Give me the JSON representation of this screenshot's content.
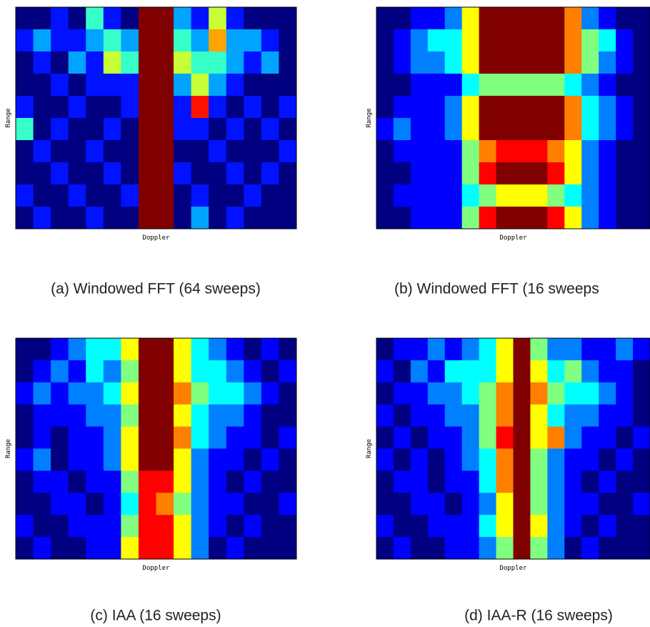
{
  "chart_data": [
    {
      "type": "heatmap",
      "colormap": "jet",
      "xlabel": "Doppler",
      "ylabel": "Range",
      "caption": "(a) Windowed FFT (64 sweeps)",
      "z": [
        [
          2,
          2,
          3,
          2,
          5,
          3,
          2,
          9,
          9,
          4,
          3,
          6,
          3,
          2,
          2,
          2
        ],
        [
          3,
          4,
          3,
          3,
          4,
          5,
          4,
          9,
          9,
          5,
          4,
          7,
          4,
          4,
          3,
          2
        ],
        [
          2,
          3,
          2,
          4,
          3,
          6,
          5,
          9,
          9,
          6,
          5,
          5,
          4,
          3,
          4,
          2
        ],
        [
          2,
          2,
          3,
          2,
          3,
          3,
          3,
          9,
          9,
          4,
          6,
          4,
          3,
          2,
          2,
          2
        ],
        [
          3,
          2,
          2,
          3,
          2,
          2,
          3,
          9,
          9,
          3,
          8,
          3,
          2,
          3,
          2,
          3
        ],
        [
          5,
          2,
          3,
          2,
          2,
          3,
          2,
          9,
          9,
          3,
          3,
          2,
          3,
          2,
          3,
          2
        ],
        [
          2,
          3,
          2,
          2,
          3,
          2,
          2,
          9,
          9,
          2,
          2,
          3,
          2,
          2,
          2,
          3
        ],
        [
          2,
          2,
          3,
          2,
          2,
          3,
          2,
          9,
          9,
          3,
          2,
          2,
          3,
          2,
          3,
          2
        ],
        [
          3,
          2,
          2,
          3,
          2,
          2,
          3,
          9,
          9,
          2,
          3,
          2,
          2,
          3,
          2,
          2
        ],
        [
          2,
          3,
          2,
          2,
          3,
          2,
          2,
          9,
          9,
          2,
          4,
          2,
          3,
          2,
          2,
          2
        ]
      ]
    },
    {
      "type": "heatmap",
      "colormap": "jet",
      "xlabel": "Doppler",
      "ylabel": "Range",
      "caption": "(b) Windowed FFT (16 sweeps",
      "z": [
        [
          1,
          1,
          2,
          2,
          3,
          6,
          9,
          9,
          9,
          9,
          9,
          7,
          3,
          2,
          1,
          1
        ],
        [
          1,
          2,
          3,
          4,
          4,
          6,
          9,
          9,
          9,
          9,
          9,
          7,
          5,
          4,
          2,
          1
        ],
        [
          1,
          2,
          3,
          3,
          4,
          6,
          9,
          9,
          9,
          9,
          9,
          7,
          5,
          3,
          2,
          1
        ],
        [
          1,
          1,
          2,
          2,
          2,
          4,
          5,
          5,
          5,
          5,
          5,
          4,
          3,
          2,
          1,
          1
        ],
        [
          1,
          2,
          2,
          2,
          3,
          6,
          9,
          9,
          9,
          9,
          9,
          7,
          4,
          3,
          2,
          1
        ],
        [
          2,
          3,
          2,
          2,
          3,
          6,
          9,
          9,
          9,
          9,
          9,
          7,
          4,
          3,
          2,
          1
        ],
        [
          1,
          2,
          2,
          2,
          2,
          5,
          7,
          8,
          8,
          8,
          7,
          6,
          3,
          2,
          1,
          1
        ],
        [
          1,
          1,
          2,
          2,
          2,
          5,
          8,
          9,
          9,
          9,
          8,
          6,
          3,
          2,
          1,
          1
        ],
        [
          1,
          2,
          2,
          2,
          2,
          4,
          5,
          6,
          6,
          6,
          5,
          4,
          3,
          2,
          1,
          1
        ],
        [
          1,
          1,
          2,
          2,
          2,
          5,
          8,
          9,
          9,
          9,
          8,
          6,
          3,
          2,
          1,
          1
        ]
      ]
    },
    {
      "type": "heatmap",
      "colormap": "jet",
      "xlabel": "Doppler",
      "ylabel": "Range",
      "caption": "(c) IAA (16 sweeps)",
      "z": [
        [
          1,
          1,
          2,
          3,
          4,
          4,
          6,
          9,
          9,
          6,
          4,
          3,
          2,
          1,
          2,
          1
        ],
        [
          1,
          2,
          3,
          2,
          4,
          3,
          5,
          9,
          9,
          6,
          4,
          4,
          3,
          2,
          1,
          2
        ],
        [
          2,
          3,
          2,
          3,
          3,
          4,
          6,
          9,
          9,
          7,
          5,
          4,
          4,
          3,
          2,
          1
        ],
        [
          1,
          2,
          2,
          2,
          3,
          3,
          5,
          9,
          9,
          6,
          4,
          3,
          3,
          2,
          1,
          1
        ],
        [
          1,
          2,
          1,
          2,
          2,
          3,
          6,
          9,
          9,
          7,
          4,
          3,
          2,
          2,
          1,
          2
        ],
        [
          2,
          3,
          1,
          2,
          2,
          3,
          6,
          9,
          9,
          6,
          3,
          2,
          2,
          1,
          2,
          1
        ],
        [
          1,
          2,
          2,
          1,
          2,
          2,
          5,
          8,
          8,
          6,
          3,
          2,
          1,
          2,
          1,
          1
        ],
        [
          1,
          1,
          2,
          2,
          1,
          2,
          4,
          8,
          7,
          5,
          3,
          2,
          2,
          1,
          1,
          2
        ],
        [
          2,
          1,
          1,
          2,
          2,
          2,
          5,
          8,
          8,
          6,
          3,
          2,
          1,
          2,
          1,
          1
        ],
        [
          1,
          2,
          1,
          1,
          2,
          2,
          6,
          8,
          8,
          6,
          3,
          1,
          2,
          1,
          1,
          1
        ]
      ]
    },
    {
      "type": "heatmap",
      "colormap": "jet",
      "xlabel": "Doppler",
      "ylabel": "Range",
      "caption": "(d) IAA-R (16 sweeps)",
      "z": [
        [
          1,
          2,
          2,
          3,
          2,
          3,
          4,
          6,
          9,
          5,
          3,
          3,
          2,
          2,
          3,
          2
        ],
        [
          2,
          1,
          3,
          2,
          4,
          4,
          4,
          6,
          9,
          6,
          4,
          5,
          3,
          2,
          2,
          1
        ],
        [
          1,
          2,
          2,
          3,
          3,
          4,
          5,
          7,
          9,
          7,
          5,
          4,
          4,
          3,
          2,
          1
        ],
        [
          2,
          1,
          2,
          2,
          3,
          3,
          5,
          7,
          9,
          6,
          4,
          3,
          3,
          2,
          2,
          1
        ],
        [
          1,
          2,
          1,
          2,
          2,
          3,
          5,
          8,
          9,
          6,
          7,
          3,
          2,
          2,
          1,
          2
        ],
        [
          2,
          1,
          2,
          1,
          2,
          3,
          4,
          7,
          9,
          5,
          3,
          2,
          2,
          1,
          2,
          1
        ],
        [
          1,
          2,
          2,
          1,
          2,
          2,
          4,
          7,
          9,
          5,
          3,
          2,
          1,
          2,
          1,
          1
        ],
        [
          1,
          1,
          2,
          2,
          1,
          2,
          3,
          6,
          9,
          5,
          3,
          2,
          2,
          1,
          1,
          2
        ],
        [
          2,
          1,
          1,
          2,
          2,
          2,
          4,
          6,
          9,
          6,
          3,
          2,
          1,
          2,
          1,
          1
        ],
        [
          1,
          2,
          1,
          1,
          2,
          2,
          3,
          5,
          9,
          5,
          3,
          1,
          2,
          1,
          1,
          1
        ]
      ]
    }
  ]
}
